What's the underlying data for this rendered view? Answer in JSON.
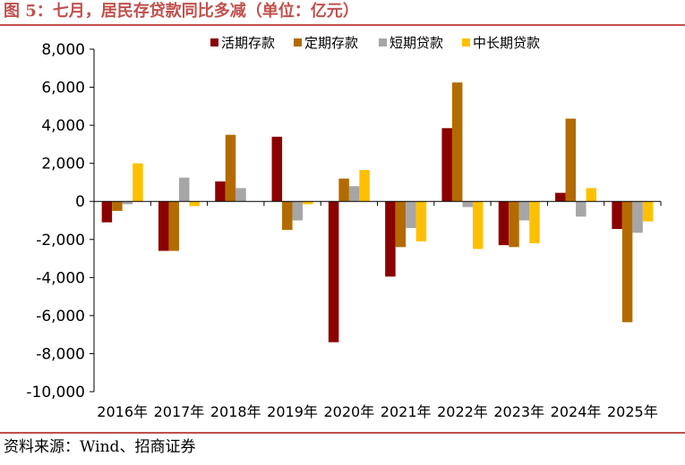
{
  "figure": {
    "title": "图 5：七月，居民存贷款同比多减（单位：亿元）",
    "source": "资料来源：Wind、招商证券"
  },
  "colors": {
    "accent": "#c0504d",
    "series": [
      "#8b0000",
      "#b36b00",
      "#a6a6a6",
      "#ffc000"
    ]
  },
  "chart_data": {
    "type": "bar",
    "title": "七月，居民存贷款同比多减（单位：亿元）",
    "xlabel": "",
    "ylabel": "",
    "ylim": [
      -10000,
      8000
    ],
    "yticks": [
      8000,
      6000,
      4000,
      2000,
      0,
      -2000,
      -4000,
      -6000,
      -8000,
      -10000
    ],
    "ytick_labels": [
      "8,000",
      "6,000",
      "4,000",
      "2,000",
      "0",
      "-2,000",
      "-4,000",
      "-6,000",
      "-8,000",
      "-10,000"
    ],
    "grid": false,
    "legend_position": "top-center",
    "categories": [
      "2016年",
      "2017年",
      "2018年",
      "2019年",
      "2020年",
      "2021年",
      "2022年",
      "2023年",
      "2024年",
      "2025年"
    ],
    "series": [
      {
        "name": "活期存款",
        "values": [
          -1100,
          -2600,
          1050,
          3400,
          -7400,
          -3950,
          3850,
          -2300,
          450,
          -1450
        ]
      },
      {
        "name": "定期存款",
        "values": [
          -500,
          -2600,
          3500,
          -1500,
          1200,
          -2400,
          6250,
          -2400,
          4350,
          -6350
        ]
      },
      {
        "name": "短期贷款",
        "values": [
          -150,
          1250,
          700,
          -1000,
          800,
          -1400,
          -300,
          -1000,
          -800,
          -1650
        ]
      },
      {
        "name": "中长期贷款",
        "values": [
          2000,
          -250,
          0,
          -150,
          1650,
          -2100,
          -2500,
          -2200,
          700,
          -1050
        ]
      }
    ]
  }
}
